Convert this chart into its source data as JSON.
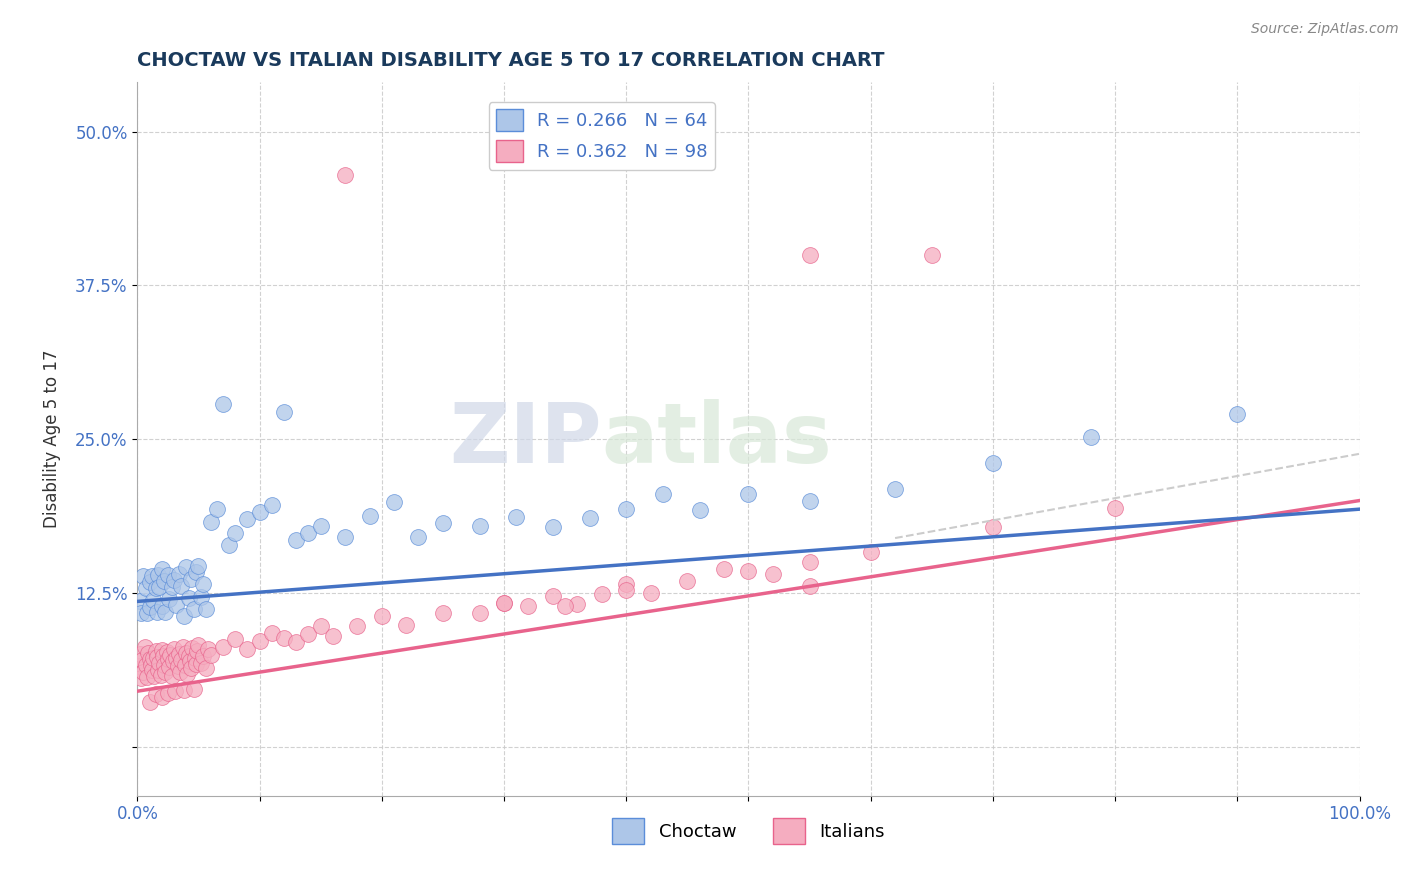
{
  "title": "CHOCTAW VS ITALIAN DISABILITY AGE 5 TO 17 CORRELATION CHART",
  "source_text": "Source: ZipAtlas.com",
  "ylabel": "Disability Age 5 to 17",
  "xlim": [
    0.0,
    1.0
  ],
  "ylim": [
    -0.04,
    0.54
  ],
  "x_ticks": [
    0.0,
    0.1,
    0.2,
    0.3,
    0.4,
    0.5,
    0.6,
    0.7,
    0.8,
    0.9,
    1.0
  ],
  "x_tick_labels": [
    "0.0%",
    "",
    "",
    "",
    "",
    "",
    "",
    "",
    "",
    "",
    "100.0%"
  ],
  "y_ticks": [
    0.0,
    0.125,
    0.25,
    0.375,
    0.5
  ],
  "y_tick_labels": [
    "",
    "12.5%",
    "25.0%",
    "37.5%",
    "50.0%"
  ],
  "choctaw_color": "#adc6e8",
  "italian_color": "#f5adc0",
  "choctaw_edge_color": "#5b8dd9",
  "italian_edge_color": "#e8638c",
  "choctaw_line_color": "#4472c4",
  "italian_line_color": "#e8638c",
  "choctaw_r": 0.266,
  "choctaw_n": 64,
  "italian_r": 0.362,
  "italian_n": 98,
  "legend_r_color": "#4472c4",
  "title_color": "#1a3a5c",
  "choctaw_intercept": 0.118,
  "choctaw_slope": 0.075,
  "italian_intercept": 0.045,
  "italian_slope": 0.155,
  "watermark_zip": "ZIP",
  "watermark_atlas": "atlas"
}
